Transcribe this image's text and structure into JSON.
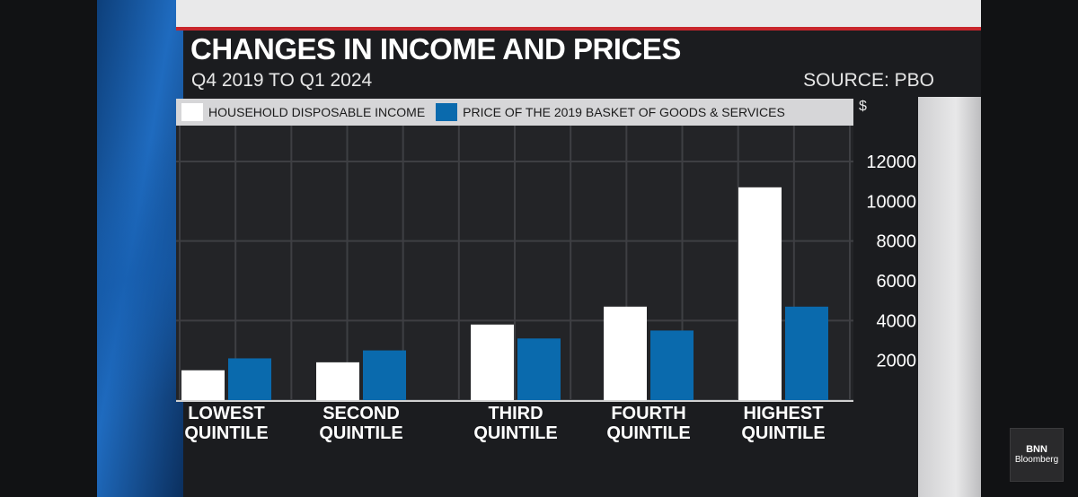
{
  "header": {
    "title": "CHANGES IN INCOME AND PRICES",
    "subtitle": "Q4 2019 TO Q1 2024",
    "source": "SOURCE: PBO"
  },
  "logo": {
    "line1": "BNN",
    "line2": "Bloomberg"
  },
  "colors": {
    "income": "#ffffff",
    "prices": "#0a6aad",
    "plot_bg": "#232427",
    "grid": "#3e3f43"
  },
  "chart_data": {
    "type": "bar",
    "title": "CHANGES IN INCOME AND PRICES",
    "subtitle": "Q4 2019 TO Q1 2024",
    "ylabel": "$",
    "ylim": [
      0,
      12000
    ],
    "yticks": [
      2000,
      4000,
      6000,
      8000,
      10000,
      12000
    ],
    "categories": [
      [
        "LOWEST",
        "QUINTILE"
      ],
      [
        "SECOND",
        "QUINTILE"
      ],
      [
        "THIRD",
        "QUINTILE"
      ],
      [
        "FOURTH",
        "QUINTILE"
      ],
      [
        "HIGHEST",
        "QUINTILE"
      ]
    ],
    "series": [
      {
        "name": "HOUSEHOLD DISPOSABLE INCOME",
        "color": "#ffffff",
        "values": [
          1500,
          1900,
          3800,
          4700,
          10700
        ]
      },
      {
        "name": "PRICE OF THE 2019 BASKET OF GOODS & SERVICES",
        "color": "#0a6aad",
        "values": [
          2100,
          2500,
          3100,
          3500,
          4700
        ]
      }
    ],
    "legend": "top",
    "grid": true
  }
}
